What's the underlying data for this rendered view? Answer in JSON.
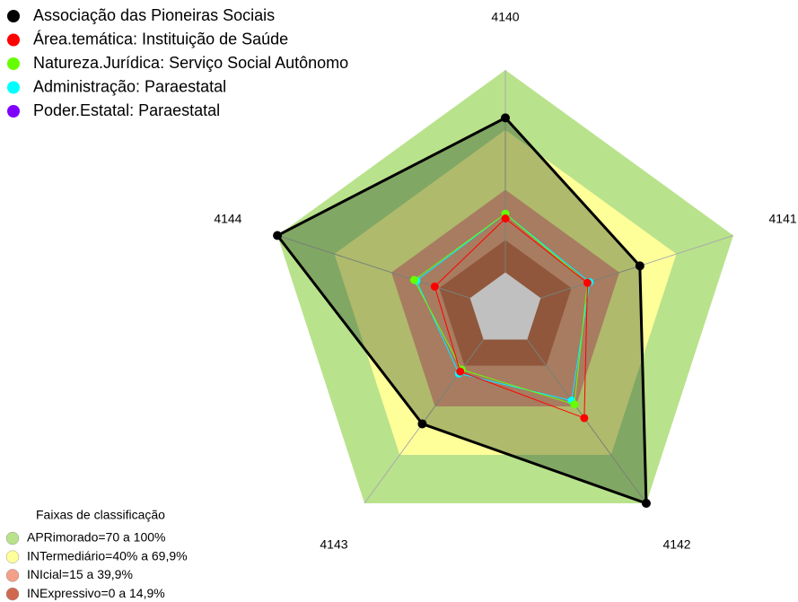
{
  "chart_data": {
    "type": "radar",
    "categories": [
      "4140",
      "4141",
      "4142",
      "4143",
      "4144"
    ],
    "ylim": [
      0,
      100
    ],
    "series": [
      {
        "name": "Associação das Pioneiras Sociais",
        "color": "#000000",
        "values": [
          80,
          59,
          100,
          59,
          100
        ]
      },
      {
        "name": "Área.temática: Instituição de Saúde",
        "color": "#ff0000",
        "values": [
          38,
          36,
          56,
          32,
          31
        ]
      },
      {
        "name": "Natureza.Jurídica: Serviço Social Autônomo",
        "color": "#66ff00",
        "values": [
          40,
          36,
          49,
          31,
          40
        ]
      },
      {
        "name": "Administração: Paraestatal",
        "color": "#00ffff",
        "values": [
          40,
          37,
          47,
          33,
          39
        ]
      },
      {
        "name": "Poder.Estatal: Paraestatal",
        "color": "#7f00ff",
        "values": [
          40,
          37,
          47,
          33,
          39
        ]
      }
    ],
    "bands_title": "Faixas de classificação",
    "bands": [
      {
        "label": "APRimorado=70 a 100%",
        "color": "#b9e28c",
        "outer": 100
      },
      {
        "label": "INTermediário=40% a 69,9%",
        "color": "#ffff99",
        "outer": 75
      },
      {
        "label": "INIcial=15 a 39,9%",
        "color": "#f4a088",
        "outer": 50
      },
      {
        "label": "INExpressivo=0 a 14,9%",
        "color": "#d0684f",
        "outer": 29
      }
    ]
  }
}
